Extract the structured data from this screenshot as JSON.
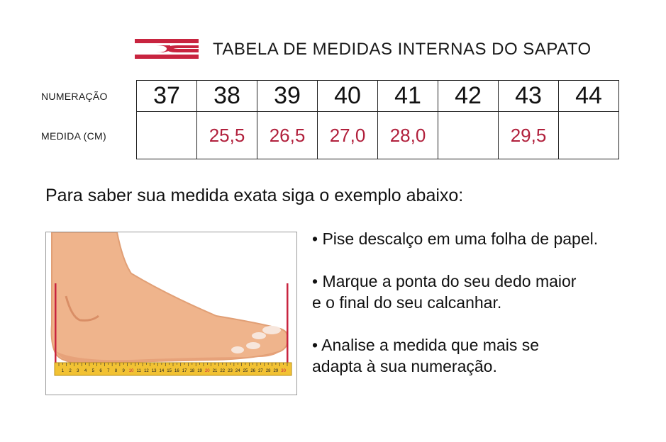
{
  "header": {
    "title": "TABELA DE MEDIDAS INTERNAS DO SAPATO",
    "logo_icon": "stripes-logo-icon",
    "accent_color": "#c8243f"
  },
  "size_table": {
    "numeracao_label": "NUMERAÇÃO",
    "medida_label": "MEDIDA (CM)",
    "sizes": [
      "37",
      "38",
      "39",
      "40",
      "41",
      "42",
      "43",
      "44"
    ],
    "measures": [
      "",
      "25,5",
      "26,5",
      "27,0",
      "28,0",
      "",
      "29,5",
      ""
    ]
  },
  "instructions": {
    "heading": "Para saber sua medida exata siga o exemplo abaixo:",
    "steps": [
      {
        "line1": "• Pise descalço em uma folha de papel.",
        "line2": ""
      },
      {
        "line1": "• Marque a ponta do seu dedo maior",
        "line2": "e o final do seu calcanhar."
      },
      {
        "line1": "• Analise a medida que mais se",
        "line2": "adapta à sua numeração."
      }
    ]
  },
  "ruler": {
    "labels": [
      "1",
      "2",
      "3",
      "4",
      "5",
      "6",
      "7",
      "8",
      "9",
      "10",
      "11",
      "12",
      "13",
      "14",
      "15",
      "16",
      "17",
      "18",
      "19",
      "20",
      "21",
      "22",
      "23",
      "24",
      "25",
      "26",
      "27",
      "28",
      "29",
      "30"
    ]
  }
}
